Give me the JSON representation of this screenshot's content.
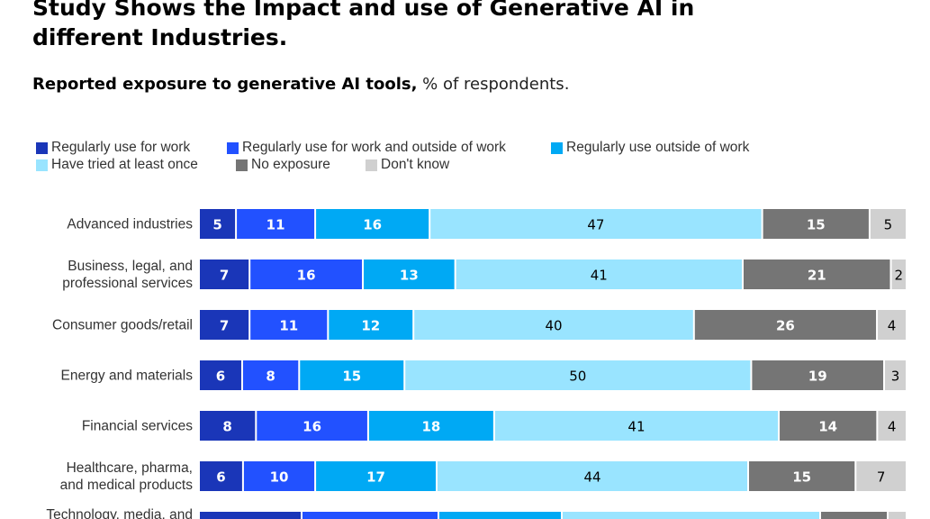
{
  "title": "Study Shows the Impact and use of Generative AI in different Industries.",
  "subtitle": {
    "main": "Reported exposure to generative AI tools,",
    "unit": " % of respondents."
  },
  "legend": [
    {
      "label": "Regularly use for work",
      "color": "#1a36b8"
    },
    {
      "label": "Regularly use for work and outside of work",
      "color": "#2251ff"
    },
    {
      "label": "Regularly use outside of work",
      "color": "#00a9f4"
    },
    {
      "label": "Have tried at least once",
      "color": "#99e4ff"
    },
    {
      "label": "No exposure",
      "color": "#757575"
    },
    {
      "label": "Don't know",
      "color": "#d0d0d0"
    }
  ],
  "chart_data": {
    "type": "bar",
    "orientation": "horizontal",
    "stacked": true,
    "categories": [
      "Advanced industries",
      "Business, legal, and professional services",
      "Consumer goods/retail",
      "Energy and materials",
      "Financial services",
      "Healthcare, pharma, and medical products"
    ],
    "category_lines": [
      [
        "Advanced industries"
      ],
      [
        "Business, legal, and",
        "professional services"
      ],
      [
        "Consumer goods/retail"
      ],
      [
        "Energy and materials"
      ],
      [
        "Financial services"
      ],
      [
        "Healthcare, pharma,",
        "and medical products"
      ]
    ],
    "series": [
      {
        "name": "Regularly use for work",
        "color": "#1a36b8",
        "label_color": "#ffffff",
        "values": [
          5,
          7,
          7,
          6,
          8,
          6
        ]
      },
      {
        "name": "Regularly use for work and outside of work",
        "color": "#2251ff",
        "label_color": "#ffffff",
        "values": [
          11,
          16,
          11,
          8,
          16,
          10
        ]
      },
      {
        "name": "Regularly use outside of work",
        "color": "#00a9f4",
        "label_color": "#ffffff",
        "values": [
          16,
          13,
          12,
          15,
          18,
          17
        ]
      },
      {
        "name": "Have tried at least once",
        "color": "#99e4ff",
        "label_color": "#000000",
        "values": [
          47,
          41,
          40,
          50,
          41,
          44
        ]
      },
      {
        "name": "No exposure",
        "color": "#757575",
        "label_color": "#ffffff",
        "values": [
          15,
          21,
          26,
          19,
          14,
          15
        ]
      },
      {
        "name": "Don't know",
        "color": "#d0d0d0",
        "label_color": "#000000",
        "values": [
          5,
          2,
          4,
          3,
          4,
          7
        ]
      }
    ],
    "partial_row_label_lines": [
      "Technology, media, and"
    ],
    "xlim": [
      0,
      100
    ]
  }
}
